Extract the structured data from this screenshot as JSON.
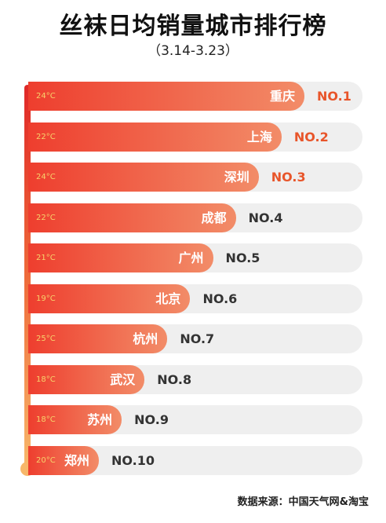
{
  "title": "丝袜日均销量城市排行榜",
  "subtitle": "（3.14-3.23）",
  "source": "数据来源：中国天气网&淘宝",
  "colors": {
    "bar_start": "#ee3e2e",
    "bar_end": "#f28c68",
    "rank_highlight": "#e8552a",
    "rank_normal": "#333333",
    "track": "#efefef"
  },
  "chart_data": {
    "type": "bar",
    "categories": [
      "重庆",
      "上海",
      "深圳",
      "成都",
      "广州",
      "北京",
      "杭州",
      "武汉",
      "苏州",
      "郑州"
    ],
    "ranks": [
      "NO.1",
      "NO.2",
      "NO.3",
      "NO.4",
      "NO.5",
      "NO.6",
      "NO.7",
      "NO.8",
      "NO.9",
      "NO.10"
    ],
    "temperatures": [
      "24°C",
      "22°C",
      "24°C",
      "22°C",
      "21°C",
      "19°C",
      "25°C",
      "18°C",
      "18°C",
      "20°C"
    ],
    "values": [
      10,
      9,
      8,
      7,
      6,
      5,
      4,
      3,
      2,
      1
    ],
    "top_highlighted": 3
  }
}
